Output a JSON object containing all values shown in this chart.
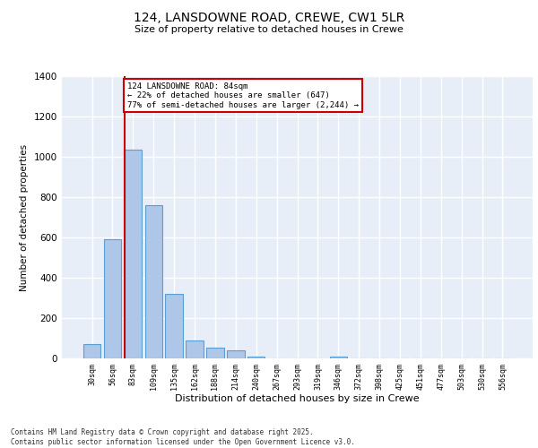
{
  "title_line1": "124, LANSDOWNE ROAD, CREWE, CW1 5LR",
  "title_line2": "Size of property relative to detached houses in Crewe",
  "xlabel": "Distribution of detached houses by size in Crewe",
  "ylabel": "Number of detached properties",
  "categories": [
    "30sqm",
    "56sqm",
    "83sqm",
    "109sqm",
    "135sqm",
    "162sqm",
    "188sqm",
    "214sqm",
    "240sqm",
    "267sqm",
    "293sqm",
    "319sqm",
    "346sqm",
    "372sqm",
    "398sqm",
    "425sqm",
    "451sqm",
    "477sqm",
    "503sqm",
    "530sqm",
    "556sqm"
  ],
  "values": [
    70,
    590,
    1035,
    760,
    320,
    90,
    55,
    40,
    10,
    0,
    0,
    0,
    10,
    0,
    0,
    0,
    0,
    0,
    0,
    0,
    0
  ],
  "bar_color": "#aec6e8",
  "bar_edge_color": "#5a9fd4",
  "vline_x_index": 2,
  "vline_color": "#cc0000",
  "annotation_line1": "124 LANSDOWNE ROAD: 84sqm",
  "annotation_line2": "← 22% of detached houses are smaller (647)",
  "annotation_line3": "77% of semi-detached houses are larger (2,244) →",
  "annotation_box_color": "#cc0000",
  "annotation_box_facecolor": "white",
  "ylim": [
    0,
    1400
  ],
  "yticks": [
    0,
    200,
    400,
    600,
    800,
    1000,
    1200,
    1400
  ],
  "bg_color": "#e8eef8",
  "grid_color": "white",
  "footer": "Contains HM Land Registry data © Crown copyright and database right 2025.\nContains public sector information licensed under the Open Government Licence v3.0."
}
